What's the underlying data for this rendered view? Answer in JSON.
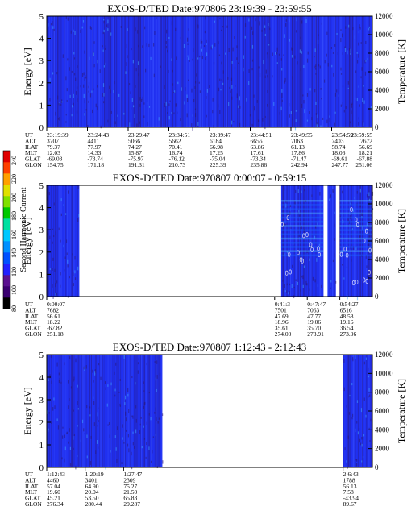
{
  "colorbar": {
    "label": "Second Harmonic Current",
    "ticks": [
      "240",
      "220",
      "200",
      "180",
      "160",
      "140",
      "120",
      "100",
      "80"
    ],
    "colors": [
      "#000000",
      "#3a0070",
      "#5a1090",
      "#2020ff",
      "#0050ff",
      "#0090ff",
      "#00c8ff",
      "#00e0a0",
      "#00c800",
      "#80e000",
      "#e0e000",
      "#ffa000",
      "#ff4000",
      "#e00000"
    ]
  },
  "colors": {
    "background_blue": "#2030f0",
    "speckle_dark": "#2a1878",
    "speckle_bright": "#3fa0ff",
    "white_gap": "#ffffff"
  },
  "chart_data": [
    {
      "type": "heatmap",
      "title": "EXOS-D/TED   Date:970806  23:19:39 - 23:59:55",
      "ylabel": "Energy [eV]",
      "y2label": "Temperature [K]",
      "ylim": [
        0,
        5
      ],
      "y2lim": [
        0,
        12000
      ],
      "yticks": [
        "0",
        "1",
        "2",
        "3",
        "4",
        "5"
      ],
      "y2ticks": [
        "0",
        "2000",
        "4000",
        "6000",
        "8000",
        "10000",
        "12000"
      ],
      "data_intervals": [
        [
          0,
          1
        ]
      ],
      "row_labels": [
        "UT",
        "ALT",
        "ILAT",
        "MLT",
        "GLAT",
        "GLON"
      ],
      "columns": [
        {
          "pos": 0.0,
          "values": [
            "23:19:39",
            "3707",
            "79.37",
            "12.03",
            "-69.03",
            "154.75"
          ]
        },
        {
          "pos": 0.125,
          "values": [
            "23:24:43",
            "4411",
            "77.97",
            "14.33",
            "-73.74",
            "171.18"
          ]
        },
        {
          "pos": 0.25,
          "values": [
            "23:29:47",
            "5066",
            "74.27",
            "15.87",
            "-75.97",
            "191.31"
          ]
        },
        {
          "pos": 0.375,
          "values": [
            "23:34:51",
            "5662",
            "70.41",
            "16.74",
            "-76.12",
            "210.73"
          ]
        },
        {
          "pos": 0.5,
          "values": [
            "23:39:47",
            "6184",
            "66.98",
            "17.25",
            "-75.04",
            "225.39"
          ]
        },
        {
          "pos": 0.625,
          "values": [
            "23:44:51",
            "6656",
            "63.86",
            "17.61",
            "-73.34",
            "235.86"
          ]
        },
        {
          "pos": 0.75,
          "values": [
            "23:49:55",
            "7063",
            "61.13",
            "17.86",
            "-71.47",
            "242.94"
          ]
        },
        {
          "pos": 0.875,
          "values": [
            "23:54:59",
            "7403",
            "58.74",
            "18.06",
            "-69.61",
            "247.77"
          ]
        },
        {
          "pos": 1.0,
          "values": [
            "23:59:55",
            "7672",
            "56.69",
            "18.21",
            "-67.88",
            "251.06"
          ]
        }
      ]
    },
    {
      "type": "heatmap",
      "title": "EXOS-D/TED   Date:970807  0:00:07 - 0:59:15",
      "ylabel": "Energy [eV]",
      "y2label": "Temperature [K]",
      "ylim": [
        0,
        5
      ],
      "y2lim": [
        0,
        12000
      ],
      "yticks": [
        "0",
        "1",
        "2",
        "3",
        "4",
        "5"
      ],
      "y2ticks": [
        "0",
        "2000",
        "4000",
        "6000",
        "8000",
        "10000",
        "12000"
      ],
      "data_intervals": [
        [
          0,
          0.1
        ],
        [
          0.72,
          0.85
        ],
        [
          0.863,
          0.888
        ],
        [
          0.9,
          1.0
        ]
      ],
      "row_labels": [
        "UT",
        "ALT",
        "ILAT",
        "MLT",
        "GLAT",
        "GLON"
      ],
      "columns": [
        {
          "pos": 0.0,
          "values": [
            "0:00:07",
            "7682",
            "56.61",
            "18.22",
            "-67.82",
            "251.18"
          ]
        },
        {
          "pos": 0.7,
          "values": [
            "0:41:3",
            "7501",
            "47.69",
            "18.96",
            "35.61",
            "274.00"
          ]
        },
        {
          "pos": 0.8,
          "values": [
            "0:47:47",
            "7063",
            "47.77",
            "19.06",
            "35.70",
            "273.91"
          ]
        },
        {
          "pos": 0.9,
          "values": [
            "0:54:27",
            "6516",
            "48.58",
            "19.16",
            "36.54",
            "273.96"
          ]
        }
      ]
    },
    {
      "type": "heatmap",
      "title": "EXOS-D/TED   Date:970807  1:12:43 - 2:12:43",
      "ylabel": "Energy [eV]",
      "y2label": "Temperature [K]",
      "ylim": [
        0,
        5
      ],
      "y2lim": [
        0,
        12000
      ],
      "yticks": [
        "0",
        "1",
        "2",
        "3",
        "4",
        "5"
      ],
      "y2ticks": [
        "0",
        "2000",
        "4000",
        "6000",
        "8000",
        "10000",
        "12000"
      ],
      "data_intervals": [
        [
          0,
          0.355
        ],
        [
          0.91,
          1.0
        ]
      ],
      "row_labels": [
        "UT",
        "ALT",
        "ILAT",
        "MLT",
        "GLAT",
        "GLON"
      ],
      "columns": [
        {
          "pos": 0.0,
          "values": [
            "1:12:43",
            "4460",
            "57.04",
            "19.60",
            "45.21",
            "276.34"
          ]
        },
        {
          "pos": 0.118,
          "values": [
            "1:20:19",
            "3401",
            "64.90",
            "20.04",
            "53.50",
            "280.44"
          ]
        },
        {
          "pos": 0.236,
          "values": [
            "1:27:47",
            "2309",
            "75.27",
            "21.50",
            "65.83",
            "29.287"
          ]
        },
        {
          "pos": 0.91,
          "values": [
            "2:6:43",
            "1788",
            "56.13",
            "7.58",
            "-43.94",
            "89.67"
          ]
        }
      ]
    }
  ]
}
